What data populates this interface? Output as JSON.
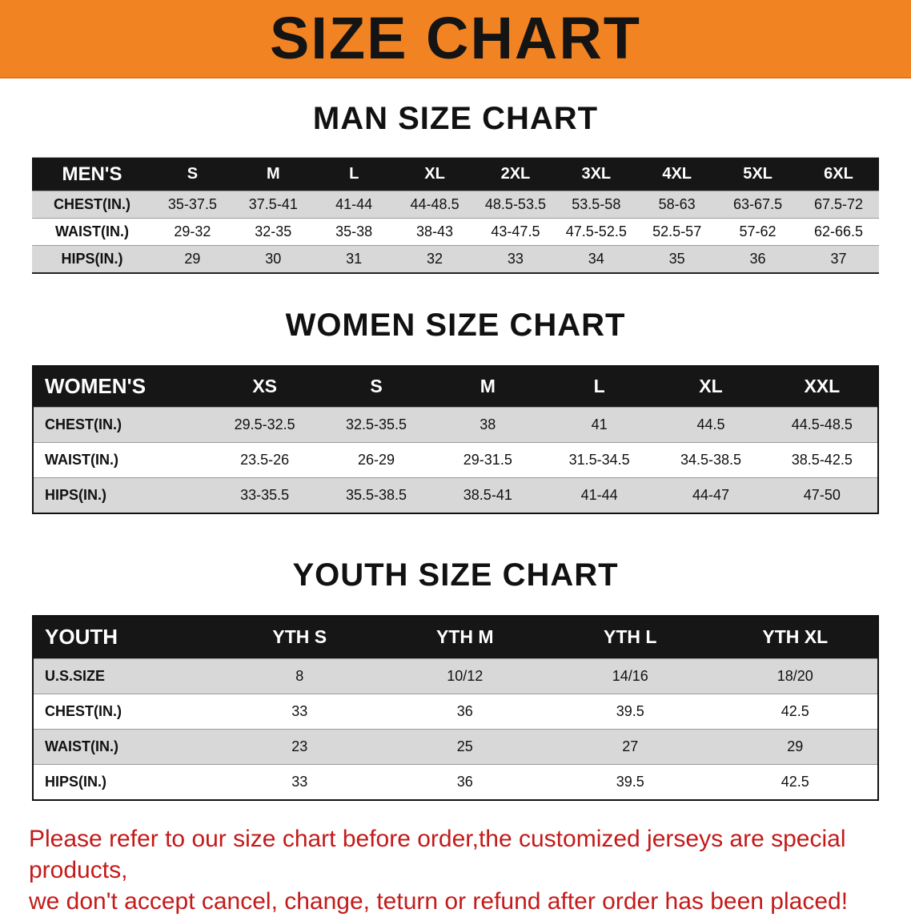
{
  "banner": {
    "title": "SIZE CHART"
  },
  "colors": {
    "banner_bg": "#f28322",
    "header_row_bg": "#161616",
    "stripe_bg": "#d8d8d8",
    "footer_text": "#c41a1a"
  },
  "sections": [
    {
      "heading": "MAN SIZE CHART",
      "table": {
        "header": [
          "MEN'S",
          "S",
          "M",
          "L",
          "XL",
          "2XL",
          "3XL",
          "4XL",
          "5XL",
          "6XL"
        ],
        "rows": [
          [
            "CHEST(IN.)",
            "35-37.5",
            "37.5-41",
            "41-44",
            "44-48.5",
            "48.5-53.5",
            "53.5-58",
            "58-63",
            "63-67.5",
            "67.5-72"
          ],
          [
            "WAIST(IN.)",
            "29-32",
            "32-35",
            "35-38",
            "38-43",
            "43-47.5",
            "47.5-52.5",
            "52.5-57",
            "57-62",
            "62-66.5"
          ],
          [
            "HIPS(IN.)",
            "29",
            "30",
            "31",
            "32",
            "33",
            "34",
            "35",
            "36",
            "37"
          ]
        ]
      }
    },
    {
      "heading": "WOMEN SIZE CHART",
      "table": {
        "header": [
          "WOMEN'S",
          "XS",
          "S",
          "M",
          "L",
          "XL",
          "XXL"
        ],
        "rows": [
          [
            "CHEST(IN.)",
            "29.5-32.5",
            "32.5-35.5",
            "38",
            "41",
            "44.5",
            "44.5-48.5"
          ],
          [
            "WAIST(IN.)",
            "23.5-26",
            "26-29",
            "29-31.5",
            "31.5-34.5",
            "34.5-38.5",
            "38.5-42.5"
          ],
          [
            "HIPS(IN.)",
            "33-35.5",
            "35.5-38.5",
            "38.5-41",
            "41-44",
            "44-47",
            "47-50"
          ]
        ]
      }
    },
    {
      "heading": "YOUTH SIZE CHART",
      "table": {
        "header": [
          "YOUTH",
          "YTH S",
          "YTH M",
          "YTH L",
          "YTH XL"
        ],
        "rows": [
          [
            "U.S.SIZE",
            "8",
            "10/12",
            "14/16",
            "18/20"
          ],
          [
            "CHEST(IN.)",
            "33",
            "36",
            "39.5",
            "42.5"
          ],
          [
            "WAIST(IN.)",
            "23",
            "25",
            "27",
            "29"
          ],
          [
            "HIPS(IN.)",
            "33",
            "36",
            "39.5",
            "42.5"
          ]
        ]
      }
    }
  ],
  "footer": {
    "lines": [
      "Please refer to our size chart before order,the customized jerseys are special products,",
      "we don't accept cancel, change, teturn or refund after order has been placed!"
    ]
  }
}
